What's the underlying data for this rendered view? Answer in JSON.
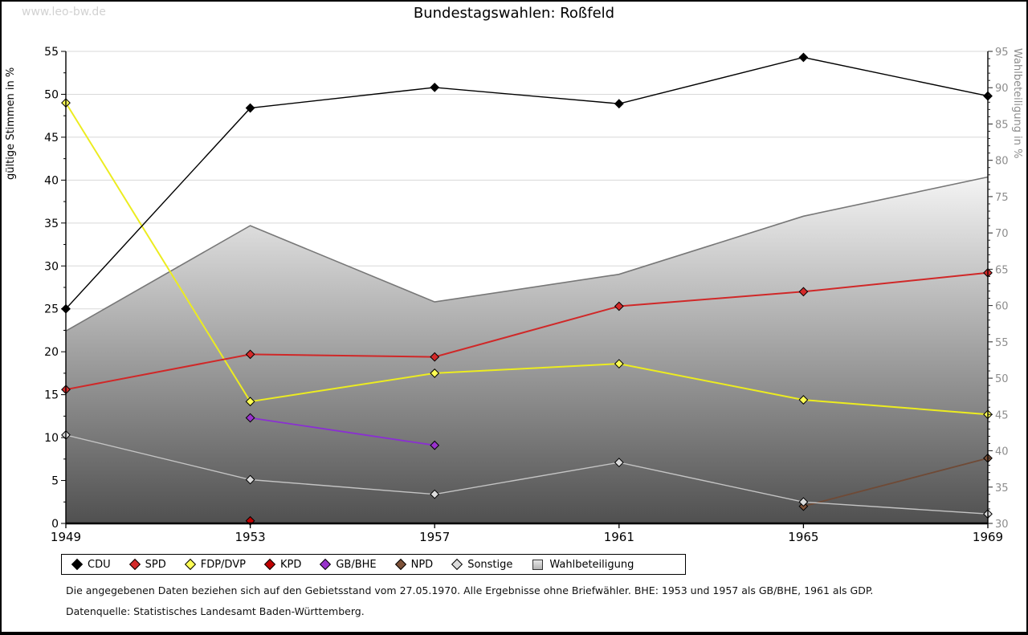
{
  "watermark": "www.leo-bw.de",
  "title": "Bundestagswahlen: Roßfeld",
  "chart_data": {
    "type": "line",
    "x": [
      1949,
      1953,
      1957,
      1961,
      1965,
      1969
    ],
    "left_axis": {
      "label": "gültige Stimmen in %",
      "min": 0,
      "max": 55,
      "major_step": 5,
      "minor_step": 2.5
    },
    "right_axis": {
      "label": "Wahlbeteiligung in %",
      "min": 30,
      "max": 95,
      "major_step": 5,
      "minor_step": 1
    },
    "grid": true,
    "legend_position": "bottom",
    "area_series": {
      "name": "Wahlbeteiligung",
      "axis": "right",
      "values": [
        56.5,
        71.0,
        60.5,
        64.3,
        72.3,
        77.7
      ],
      "fill_top": "#f4f4f4",
      "fill_bottom": "#505050",
      "edge_color": "#777777"
    },
    "series": [
      {
        "name": "CDU",
        "axis": "left",
        "line_color": "#000000",
        "marker_color": "#000000",
        "values": [
          25.0,
          48.4,
          50.8,
          48.9,
          54.3,
          49.8
        ],
        "width": 1.4
      },
      {
        "name": "SPD",
        "axis": "left",
        "line_color": "#d02828",
        "marker_color": "#d42a2a",
        "values": [
          15.6,
          19.7,
          19.4,
          25.3,
          27.0,
          29.2
        ],
        "width": 2
      },
      {
        "name": "FDP/DVP",
        "axis": "left",
        "line_color": "#ecec20",
        "marker_color": "#ffff55",
        "values": [
          49.0,
          14.2,
          17.5,
          18.6,
          14.4,
          12.7
        ],
        "width": 2
      },
      {
        "name": "KPD",
        "axis": "left",
        "line_color": "#b40a0a",
        "marker_color": "#c00000",
        "values": [
          null,
          0.3,
          null,
          null,
          null,
          null
        ],
        "width": 1.6
      },
      {
        "name": "GB/BHE",
        "axis": "left",
        "line_color": "#8a2fd2",
        "marker_color": "#9932cc",
        "values": [
          null,
          12.3,
          9.1,
          null,
          null,
          null
        ],
        "width": 1.8
      },
      {
        "name": "NPD",
        "axis": "left",
        "line_color": "#6f4a36",
        "marker_color": "#7d5138",
        "values": [
          null,
          null,
          null,
          null,
          2.0,
          7.6
        ],
        "width": 1.8
      },
      {
        "name": "Sonstige",
        "axis": "left",
        "line_color": "#c4c4c4",
        "marker_color": "#dcdcdc",
        "values": [
          10.3,
          5.1,
          3.4,
          7.1,
          2.5,
          1.1
        ],
        "width": 1.4
      }
    ]
  },
  "legend": {
    "items": [
      {
        "label": "CDU",
        "color": "#000000",
        "shape": "diamond"
      },
      {
        "label": "SPD",
        "color": "#d42a2a",
        "shape": "diamond"
      },
      {
        "label": "FDP/DVP",
        "color": "#ffff55",
        "shape": "diamond"
      },
      {
        "label": "KPD",
        "color": "#c00000",
        "shape": "diamond"
      },
      {
        "label": "GB/BHE",
        "color": "#9932cc",
        "shape": "diamond"
      },
      {
        "label": "NPD",
        "color": "#7d5138",
        "shape": "diamond"
      },
      {
        "label": "Sonstige",
        "color": "#dcdcdc",
        "shape": "diamond"
      },
      {
        "label": "Wahlbeteiligung",
        "color": "#cccccc",
        "shape": "square"
      }
    ]
  },
  "footer": {
    "line1": "Die angegebenen Daten beziehen sich auf den Gebietsstand vom 27.05.1970. Alle Ergebnisse ohne Briefwähler. BHE: 1953 und 1957 als GB/BHE, 1961 als GDP.",
    "line2": "Datenquelle: Statistisches Landesamt Baden-Württemberg."
  }
}
